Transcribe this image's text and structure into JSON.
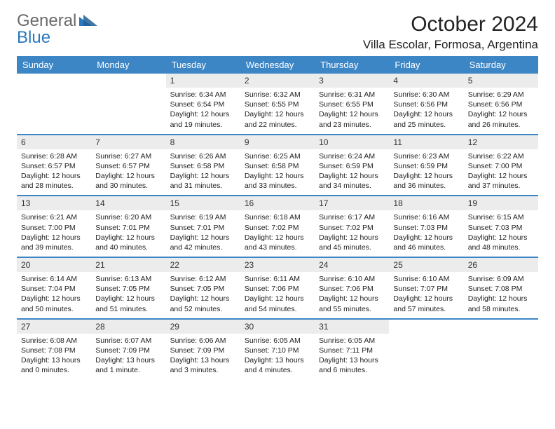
{
  "brand": {
    "part1": "General",
    "part2": "Blue"
  },
  "title": "October 2024",
  "location": "Villa Escolar, Formosa, Argentina",
  "colors": {
    "header_bg": "#3d86c6",
    "header_text": "#ffffff",
    "daynum_bg": "#ececec",
    "text": "#222222",
    "logo_gray": "#6a6a6a",
    "logo_blue": "#2a78bd",
    "separator": "#3d86c6"
  },
  "fonts": {
    "base_family": "Arial, Helvetica, sans-serif",
    "month_title_size": 30,
    "location_size": 17,
    "dayheader_size": 13,
    "daynum_size": 12,
    "body_size": 10.5
  },
  "day_headers": [
    "Sunday",
    "Monday",
    "Tuesday",
    "Wednesday",
    "Thursday",
    "Friday",
    "Saturday"
  ],
  "weeks": [
    [
      null,
      null,
      {
        "n": "1",
        "sr": "6:34 AM",
        "ss": "6:54 PM",
        "dl": "12 hours and 19 minutes."
      },
      {
        "n": "2",
        "sr": "6:32 AM",
        "ss": "6:55 PM",
        "dl": "12 hours and 22 minutes."
      },
      {
        "n": "3",
        "sr": "6:31 AM",
        "ss": "6:55 PM",
        "dl": "12 hours and 23 minutes."
      },
      {
        "n": "4",
        "sr": "6:30 AM",
        "ss": "6:56 PM",
        "dl": "12 hours and 25 minutes."
      },
      {
        "n": "5",
        "sr": "6:29 AM",
        "ss": "6:56 PM",
        "dl": "12 hours and 26 minutes."
      }
    ],
    [
      {
        "n": "6",
        "sr": "6:28 AM",
        "ss": "6:57 PM",
        "dl": "12 hours and 28 minutes."
      },
      {
        "n": "7",
        "sr": "6:27 AM",
        "ss": "6:57 PM",
        "dl": "12 hours and 30 minutes."
      },
      {
        "n": "8",
        "sr": "6:26 AM",
        "ss": "6:58 PM",
        "dl": "12 hours and 31 minutes."
      },
      {
        "n": "9",
        "sr": "6:25 AM",
        "ss": "6:58 PM",
        "dl": "12 hours and 33 minutes."
      },
      {
        "n": "10",
        "sr": "6:24 AM",
        "ss": "6:59 PM",
        "dl": "12 hours and 34 minutes."
      },
      {
        "n": "11",
        "sr": "6:23 AM",
        "ss": "6:59 PM",
        "dl": "12 hours and 36 minutes."
      },
      {
        "n": "12",
        "sr": "6:22 AM",
        "ss": "7:00 PM",
        "dl": "12 hours and 37 minutes."
      }
    ],
    [
      {
        "n": "13",
        "sr": "6:21 AM",
        "ss": "7:00 PM",
        "dl": "12 hours and 39 minutes."
      },
      {
        "n": "14",
        "sr": "6:20 AM",
        "ss": "7:01 PM",
        "dl": "12 hours and 40 minutes."
      },
      {
        "n": "15",
        "sr": "6:19 AM",
        "ss": "7:01 PM",
        "dl": "12 hours and 42 minutes."
      },
      {
        "n": "16",
        "sr": "6:18 AM",
        "ss": "7:02 PM",
        "dl": "12 hours and 43 minutes."
      },
      {
        "n": "17",
        "sr": "6:17 AM",
        "ss": "7:02 PM",
        "dl": "12 hours and 45 minutes."
      },
      {
        "n": "18",
        "sr": "6:16 AM",
        "ss": "7:03 PM",
        "dl": "12 hours and 46 minutes."
      },
      {
        "n": "19",
        "sr": "6:15 AM",
        "ss": "7:03 PM",
        "dl": "12 hours and 48 minutes."
      }
    ],
    [
      {
        "n": "20",
        "sr": "6:14 AM",
        "ss": "7:04 PM",
        "dl": "12 hours and 50 minutes."
      },
      {
        "n": "21",
        "sr": "6:13 AM",
        "ss": "7:05 PM",
        "dl": "12 hours and 51 minutes."
      },
      {
        "n": "22",
        "sr": "6:12 AM",
        "ss": "7:05 PM",
        "dl": "12 hours and 52 minutes."
      },
      {
        "n": "23",
        "sr": "6:11 AM",
        "ss": "7:06 PM",
        "dl": "12 hours and 54 minutes."
      },
      {
        "n": "24",
        "sr": "6:10 AM",
        "ss": "7:06 PM",
        "dl": "12 hours and 55 minutes."
      },
      {
        "n": "25",
        "sr": "6:10 AM",
        "ss": "7:07 PM",
        "dl": "12 hours and 57 minutes."
      },
      {
        "n": "26",
        "sr": "6:09 AM",
        "ss": "7:08 PM",
        "dl": "12 hours and 58 minutes."
      }
    ],
    [
      {
        "n": "27",
        "sr": "6:08 AM",
        "ss": "7:08 PM",
        "dl": "13 hours and 0 minutes."
      },
      {
        "n": "28",
        "sr": "6:07 AM",
        "ss": "7:09 PM",
        "dl": "13 hours and 1 minute."
      },
      {
        "n": "29",
        "sr": "6:06 AM",
        "ss": "7:09 PM",
        "dl": "13 hours and 3 minutes."
      },
      {
        "n": "30",
        "sr": "6:05 AM",
        "ss": "7:10 PM",
        "dl": "13 hours and 4 minutes."
      },
      {
        "n": "31",
        "sr": "6:05 AM",
        "ss": "7:11 PM",
        "dl": "13 hours and 6 minutes."
      },
      null,
      null
    ]
  ],
  "labels": {
    "sunrise": "Sunrise:",
    "sunset": "Sunset:",
    "daylight": "Daylight:"
  }
}
